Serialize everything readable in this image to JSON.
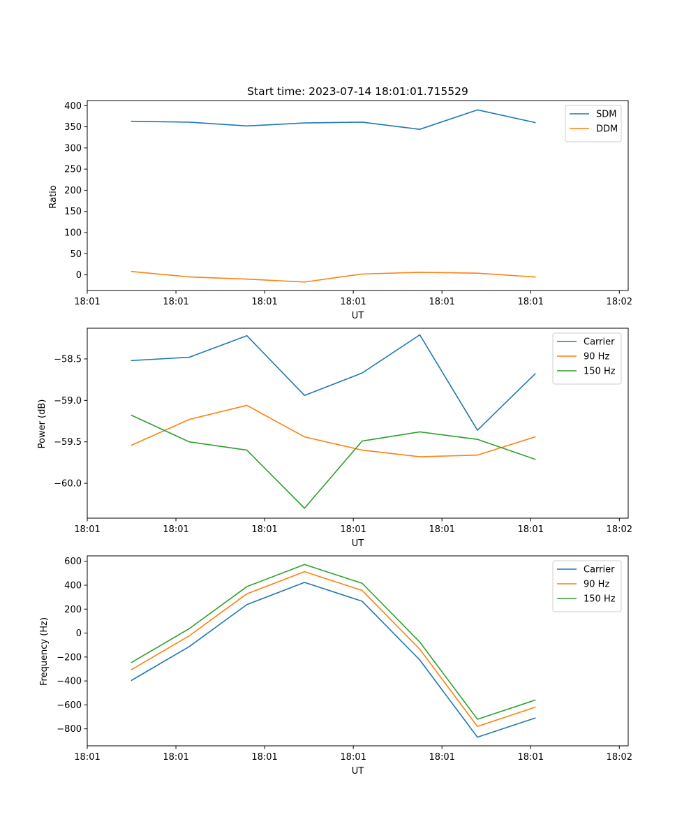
{
  "chart_data": [
    {
      "type": "line",
      "title": "Start time: 2023-07-14 18:01:01.715529",
      "xlabel": "UT",
      "ylabel": "Ratio",
      "xlim": [
        0,
        6.1
      ],
      "ylim": [
        -37,
        412
      ],
      "x_ticks": [
        0.0,
        1.0,
        2.0,
        3.0,
        4.0,
        5.0,
        6.0
      ],
      "x_tick_labels": [
        "18:01",
        "18:01",
        "18:01",
        "18:01",
        "18:01",
        "18:01",
        "18:02"
      ],
      "y_ticks": [
        0,
        50,
        100,
        150,
        200,
        250,
        300,
        350,
        400
      ],
      "y_tick_labels": [
        "0",
        "50",
        "100",
        "150",
        "200",
        "250",
        "300",
        "350",
        "400"
      ],
      "legend_position": "top-right",
      "x": [
        0.5,
        1.15,
        1.8,
        2.45,
        3.1,
        3.75,
        4.4,
        5.05
      ],
      "series": [
        {
          "name": "SDM",
          "color": "#1f77b4",
          "values": [
            363,
            361,
            352,
            359,
            361,
            344,
            390,
            360
          ]
        },
        {
          "name": "DDM",
          "color": "#ff7f0e",
          "values": [
            8,
            -5,
            -10,
            -17,
            2,
            6,
            4,
            -5
          ]
        }
      ]
    },
    {
      "type": "line",
      "title": "",
      "xlabel": "UT",
      "ylabel": "Power (dB)",
      "xlim": [
        0,
        6.1
      ],
      "ylim": [
        -60.42,
        -58.13
      ],
      "x_ticks": [
        0.0,
        1.0,
        2.0,
        3.0,
        4.0,
        5.0,
        6.0
      ],
      "x_tick_labels": [
        "18:01",
        "18:01",
        "18:01",
        "18:01",
        "18:01",
        "18:01",
        "18:02"
      ],
      "y_ticks": [
        -58.5,
        -59.0,
        -59.5,
        -60.0
      ],
      "y_tick_labels": [
        "−58.5",
        "−59.0",
        "−59.5",
        "−60.0"
      ],
      "legend_position": "top-right",
      "x": [
        0.5,
        1.15,
        1.8,
        2.45,
        3.1,
        3.75,
        4.4,
        5.05
      ],
      "series": [
        {
          "name": "Carrier",
          "color": "#1f77b4",
          "values": [
            -58.52,
            -58.48,
            -58.22,
            -58.94,
            -58.67,
            -58.21,
            -59.36,
            -58.68
          ]
        },
        {
          "name": "90 Hz",
          "color": "#ff7f0e",
          "values": [
            -59.54,
            -59.23,
            -59.06,
            -59.44,
            -59.6,
            -59.68,
            -59.66,
            -59.44
          ]
        },
        {
          "name": "150 Hz",
          "color": "#2ca02c",
          "values": [
            -59.18,
            -59.5,
            -59.6,
            -60.3,
            -59.49,
            -59.38,
            -59.47,
            -59.71
          ]
        }
      ]
    },
    {
      "type": "line",
      "title": "",
      "xlabel": "UT",
      "ylabel": "Frequency (Hz)",
      "xlim": [
        0,
        6.1
      ],
      "ylim": [
        -942,
        645
      ],
      "x_ticks": [
        0.0,
        1.0,
        2.0,
        3.0,
        4.0,
        5.0,
        6.0
      ],
      "x_tick_labels": [
        "18:01",
        "18:01",
        "18:01",
        "18:01",
        "18:01",
        "18:01",
        "18:02"
      ],
      "y_ticks": [
        600,
        400,
        200,
        0,
        -200,
        -400,
        -600,
        -800
      ],
      "y_tick_labels": [
        "600",
        "400",
        "200",
        "0",
        "−200",
        "−400",
        "−600",
        "−800"
      ],
      "legend_position": "top-right",
      "x": [
        0.5,
        1.15,
        1.8,
        2.45,
        3.1,
        3.75,
        4.4,
        5.05
      ],
      "series": [
        {
          "name": "Carrier",
          "color": "#1f77b4",
          "values": [
            -395,
            -113,
            238,
            423,
            266,
            -225,
            -870,
            -710
          ]
        },
        {
          "name": "90 Hz",
          "color": "#ff7f0e",
          "values": [
            -305,
            -23,
            328,
            513,
            356,
            -135,
            -780,
            -620
          ]
        },
        {
          "name": "150 Hz",
          "color": "#2ca02c",
          "values": [
            -245,
            37,
            388,
            573,
            416,
            -75,
            -720,
            -560
          ]
        }
      ]
    }
  ]
}
